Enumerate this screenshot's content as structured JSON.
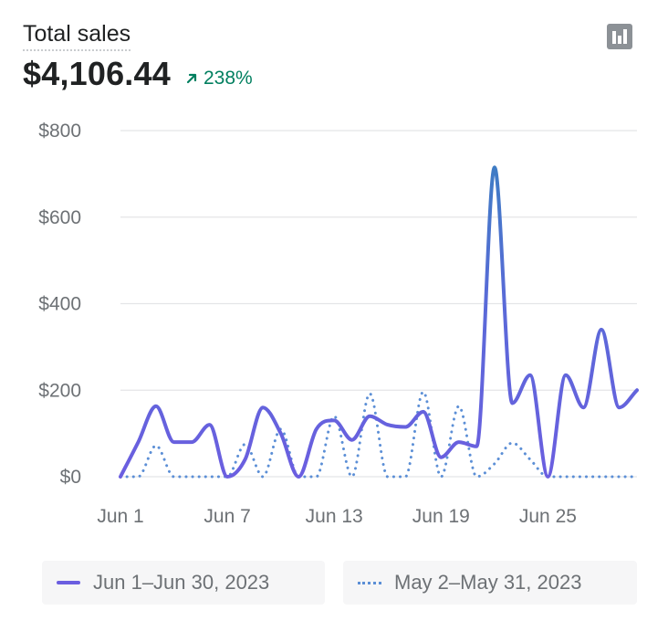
{
  "header": {
    "title": "Total sales",
    "total": "$4,106.44",
    "change": "238%"
  },
  "colors": {
    "current": "#6b5ee0",
    "current_peak": "#3e7cc4",
    "previous": "#5c8fd6",
    "change_positive": "#007f5f"
  },
  "icons": {
    "change_arrow": "arrow-up-right-icon",
    "toolbar": "bar-chart-icon"
  },
  "legend": {
    "current_label": "Jun 1–Jun 30, 2023",
    "previous_label": "May 2–May 31, 2023"
  },
  "chart_data": {
    "type": "line",
    "title": "Total sales",
    "x": [
      1,
      2,
      3,
      4,
      5,
      6,
      7,
      8,
      9,
      10,
      11,
      12,
      13,
      14,
      15,
      16,
      17,
      18,
      19,
      20,
      21,
      22,
      23,
      24,
      25,
      26,
      27,
      28,
      29,
      30
    ],
    "x_tick_labels": [
      "Jun 1",
      "Jun 7",
      "Jun 13",
      "Jun 19",
      "Jun 25"
    ],
    "x_tick_positions": [
      1,
      7,
      13,
      19,
      25
    ],
    "y_tick_labels": [
      "$0",
      "$200",
      "$400",
      "$600",
      "$800"
    ],
    "ylim": [
      0,
      800
    ],
    "grid": true,
    "legend_position": "bottom",
    "series": [
      {
        "name": "Jun 1–Jun 30, 2023",
        "style": "solid",
        "values": [
          0,
          80,
          163,
          80,
          80,
          120,
          0,
          40,
          160,
          100,
          0,
          110,
          130,
          85,
          140,
          120,
          115,
          150,
          45,
          80,
          70,
          715,
          170,
          235,
          0,
          235,
          160,
          340,
          160,
          200
        ]
      },
      {
        "name": "May 2–May 31, 2023",
        "style": "dotted",
        "values": [
          0,
          0,
          72,
          0,
          0,
          0,
          0,
          75,
          0,
          110,
          0,
          0,
          140,
          0,
          192,
          0,
          0,
          196,
          0,
          163,
          0,
          30,
          78,
          40,
          0,
          0,
          0,
          0,
          0,
          0
        ]
      }
    ]
  }
}
